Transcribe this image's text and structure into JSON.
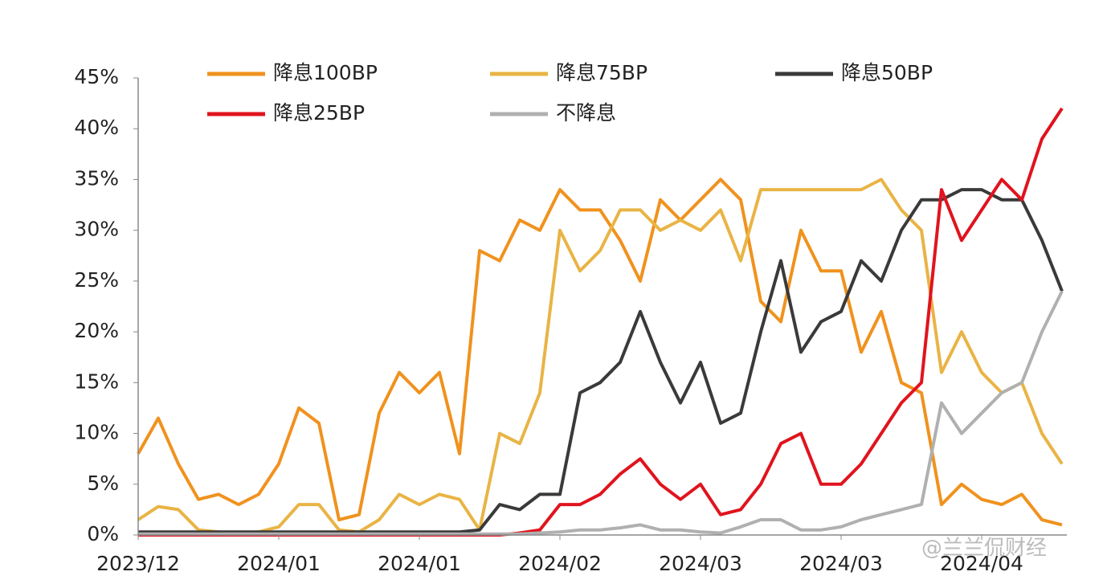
{
  "chart_data": {
    "type": "line",
    "categories": [
      "2023/12",
      null,
      null,
      null,
      null,
      null,
      null,
      "2024/01",
      null,
      null,
      null,
      null,
      null,
      null,
      "2024/01",
      null,
      null,
      null,
      null,
      null,
      null,
      "2024/02",
      null,
      null,
      null,
      null,
      null,
      null,
      "2024/03",
      null,
      null,
      null,
      null,
      null,
      null,
      "2024/03",
      null,
      null,
      null,
      null,
      null,
      null,
      "2024/04",
      null,
      null,
      null,
      null
    ],
    "ylim": [
      0,
      45
    ],
    "yticks": [
      {
        "value": 0,
        "label": "0%"
      },
      {
        "value": 5,
        "label": "5%"
      },
      {
        "value": 10,
        "label": "10%"
      },
      {
        "value": 15,
        "label": "15%"
      },
      {
        "value": 20,
        "label": "20%"
      },
      {
        "value": 25,
        "label": "25%"
      },
      {
        "value": 30,
        "label": "30%"
      },
      {
        "value": 35,
        "label": "35%"
      },
      {
        "value": 40,
        "label": "40%"
      },
      {
        "value": 45,
        "label": "45%"
      }
    ],
    "grid": false,
    "legend": "top",
    "series": [
      {
        "name": "降息100BP",
        "color": "#f0921e",
        "values": [
          8,
          11.5,
          7,
          3.5,
          4,
          3,
          4,
          7,
          12.5,
          11,
          1.5,
          2,
          12,
          16,
          14,
          16,
          8,
          28,
          27,
          31,
          30,
          34,
          32,
          32,
          29,
          25,
          33,
          31,
          33,
          35,
          33,
          23,
          21,
          30,
          26,
          26,
          18,
          22,
          15,
          14,
          3,
          5,
          3.5,
          3,
          4,
          1.5,
          1
        ]
      },
      {
        "name": "降息75BP",
        "color": "#e9b445",
        "values": [
          1.5,
          2.8,
          2.5,
          0.5,
          0.3,
          0.2,
          0.3,
          0.8,
          3,
          3,
          0.5,
          0.3,
          1.5,
          4,
          3,
          4,
          3.5,
          0.5,
          10,
          9,
          14,
          30,
          26,
          28,
          32,
          32,
          30,
          31,
          30,
          32,
          27,
          34,
          34,
          34,
          34,
          34,
          34,
          35,
          32,
          30,
          16,
          20,
          16,
          14,
          15,
          10,
          7
        ]
      },
      {
        "name": "降息50BP",
        "color": "#3a3a3a",
        "values": [
          0.3,
          0.3,
          0.3,
          0.3,
          0.3,
          0.3,
          0.3,
          0.3,
          0.3,
          0.3,
          0.3,
          0.3,
          0.3,
          0.3,
          0.3,
          0.3,
          0.3,
          0.5,
          3,
          2.5,
          4,
          4,
          14,
          15,
          17,
          22,
          17,
          13,
          17,
          11,
          12,
          20,
          27,
          18,
          21,
          22,
          27,
          25,
          30,
          33,
          33,
          34,
          34,
          33,
          33,
          29,
          24
        ]
      },
      {
        "name": "降息25BP",
        "color": "#e0141e",
        "values": [
          0,
          0,
          0,
          0,
          0,
          0,
          0,
          0,
          0,
          0,
          0,
          0,
          0,
          0,
          0,
          0,
          0,
          0,
          0,
          0.2,
          0.5,
          3,
          3,
          4,
          6,
          7.5,
          5,
          3.5,
          5,
          2,
          2.5,
          5,
          9,
          10,
          5,
          5,
          7,
          10,
          13,
          15,
          34,
          29,
          32,
          35,
          33,
          39,
          42
        ]
      },
      {
        "name": "不降息",
        "color": "#b0b0b0",
        "values": [
          0.1,
          0.1,
          0.1,
          0.1,
          0.1,
          0.1,
          0.1,
          0.1,
          0.1,
          0.1,
          0.1,
          0.1,
          0.1,
          0.1,
          0.1,
          0.1,
          0.1,
          0.1,
          0.1,
          0.1,
          0.2,
          0.3,
          0.5,
          0.5,
          0.7,
          1,
          0.5,
          0.5,
          0.3,
          0.2,
          0.8,
          1.5,
          1.5,
          0.5,
          0.5,
          0.8,
          1.5,
          2,
          2.5,
          3,
          13,
          10,
          12,
          14,
          15,
          20,
          24
        ]
      }
    ],
    "watermark": "@兰兰侃财经"
  }
}
